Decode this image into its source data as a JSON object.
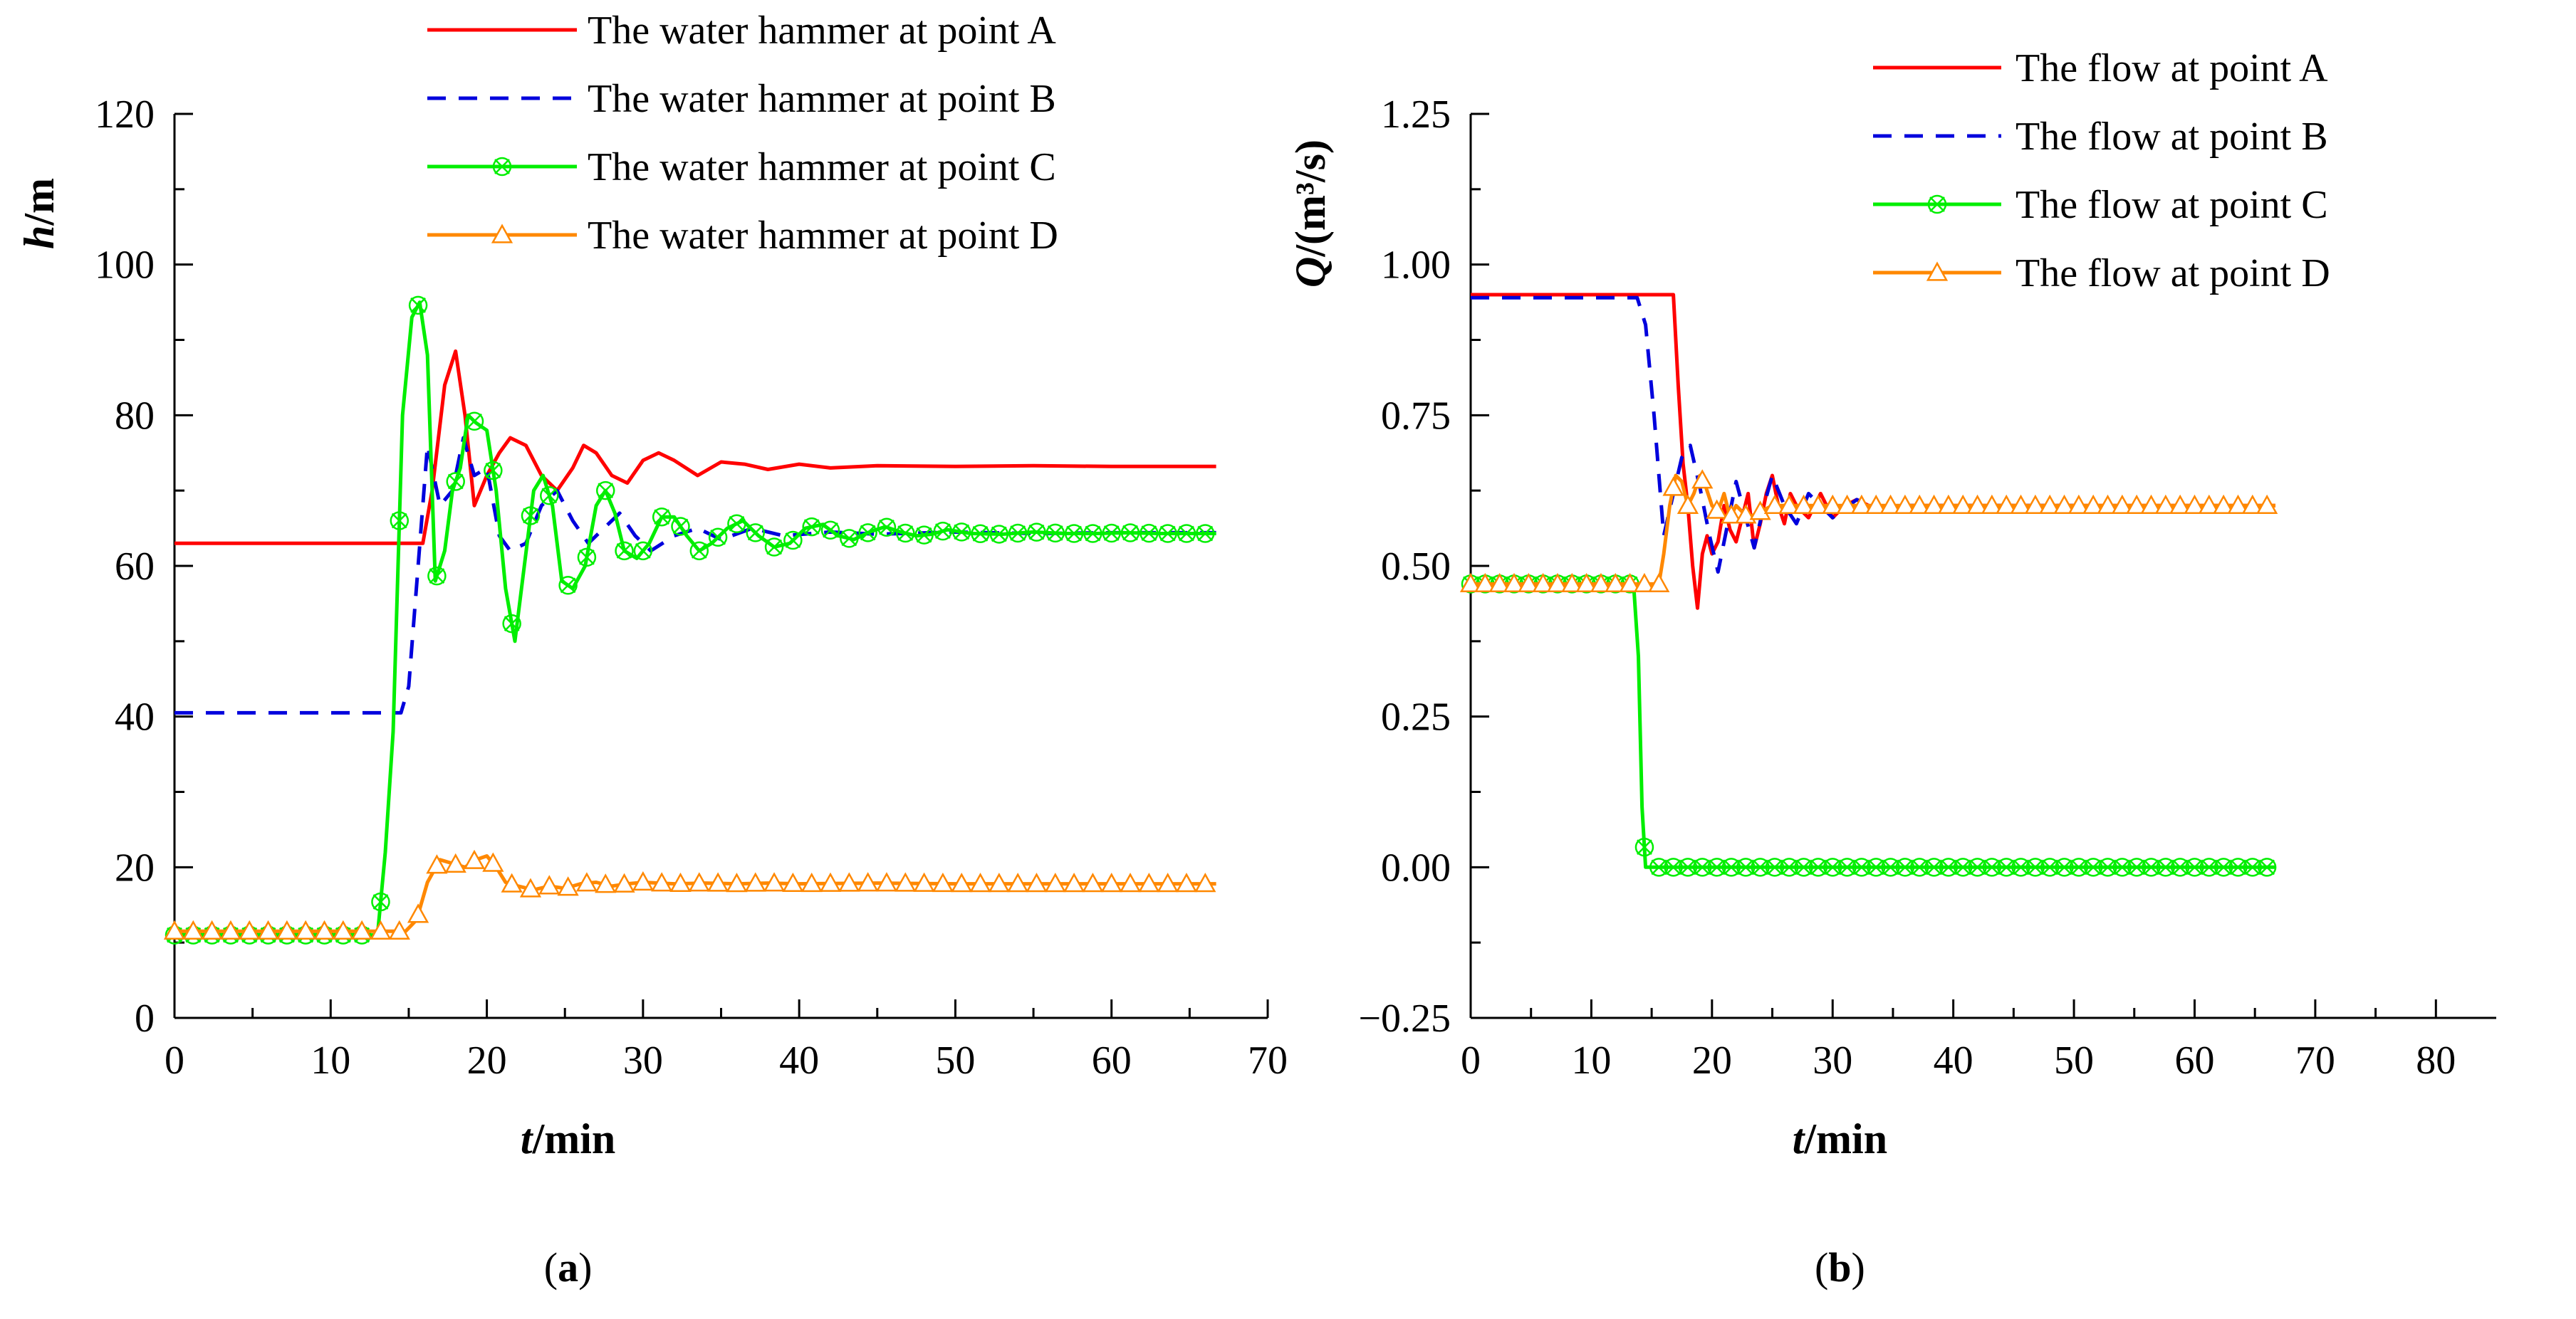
{
  "chart_data": [
    {
      "type": "line",
      "panel_label": "(a)",
      "panel_label_letter": "a",
      "xlabel": {
        "italic": "t",
        "rest": "/min"
      },
      "ylabel": {
        "italic": "h",
        "rest": "/m"
      },
      "xlim": [
        0,
        70
      ],
      "ylim": [
        0,
        120
      ],
      "xticks": [
        0,
        10,
        20,
        30,
        40,
        50,
        60,
        70
      ],
      "yticks": [
        0,
        20,
        40,
        60,
        80,
        100,
        120
      ],
      "xtick_labels": [
        "0",
        "10",
        "20",
        "30",
        "40",
        "50",
        "60",
        "70"
      ],
      "ytick_labels": [
        "0",
        "20",
        "40",
        "60",
        "80",
        "100",
        "120"
      ],
      "legend_position": "top-right",
      "series": [
        {
          "name": "The water hammer at point A",
          "color": "#ff0000",
          "style": "solid",
          "marker": "none",
          "x": [
            0,
            15.9,
            16.5,
            17.3,
            18.0,
            18.6,
            19.2,
            20.0,
            20.8,
            21.5,
            22.5,
            23.5,
            24.5,
            25.5,
            26.2,
            27.0,
            28.0,
            29.0,
            30.0,
            31.0,
            32.0,
            33.5,
            35.0,
            36.5,
            38.0,
            40.0,
            42.0,
            45.0,
            50.0,
            55.0,
            60.0,
            66.7
          ],
          "y": [
            63,
            63,
            70,
            84,
            88.5,
            80,
            68,
            72,
            75,
            77,
            76,
            72,
            70,
            73,
            76,
            75,
            72,
            71,
            74,
            75,
            74,
            72,
            73.8,
            73.5,
            72.8,
            73.5,
            73.0,
            73.3,
            73.2,
            73.3,
            73.2,
            73.2
          ]
        },
        {
          "name": "The water hammer at point B",
          "color": "#0000dd",
          "style": "dashed",
          "marker": "none",
          "x": [
            0,
            14.5,
            15.0,
            15.6,
            16.2,
            17.0,
            17.8,
            18.5,
            19.2,
            20.0,
            20.8,
            21.5,
            22.5,
            23.5,
            24.5,
            25.5,
            26.5,
            27.5,
            28.5,
            29.5,
            30.5,
            32.0,
            33.5,
            35.0,
            37.0,
            39.0,
            42.0,
            45.0,
            50.0,
            55.0,
            60.0,
            66.7
          ],
          "y": [
            40.5,
            40.5,
            44,
            60,
            76,
            68,
            70,
            77,
            72,
            73,
            64,
            62,
            63,
            68,
            70,
            66,
            63,
            65,
            67,
            64,
            62,
            64,
            65,
            63.5,
            65,
            64,
            64.5,
            64.2,
            64.5,
            64.3,
            64.4,
            64.4
          ]
        },
        {
          "name": "The water hammer at point C",
          "color": "#00ee00",
          "style": "solid",
          "marker": "x",
          "x": [
            0,
            13.0,
            13.5,
            14.0,
            14.6,
            15.2,
            15.7,
            16.2,
            16.7,
            17.3,
            17.8,
            18.3,
            18.8,
            19.3,
            20.0,
            20.6,
            21.2,
            21.8,
            22.4,
            23.0,
            23.6,
            24.2,
            24.8,
            25.5,
            26.3,
            27.0,
            27.6,
            28.2,
            28.8,
            29.6,
            30.4,
            31.2,
            32.0,
            32.8,
            33.6,
            34.4,
            35.4,
            36.4,
            37.4,
            38.4,
            39.4,
            40.4,
            41.5,
            42.5,
            43.5,
            44.5,
            45.5,
            46.5,
            47.5,
            48.5,
            49.5,
            51.0,
            53.0,
            55.0,
            57.0,
            59.0,
            61.0,
            63.0,
            65.0,
            66.7
          ],
          "y": [
            11,
            11,
            22,
            38,
            80,
            93,
            95,
            88,
            58,
            62,
            70,
            73,
            80,
            79,
            78,
            70,
            57,
            50,
            60,
            70,
            72,
            68,
            58,
            57,
            60,
            68,
            70,
            67,
            62,
            61,
            63,
            66.5,
            66.5,
            64,
            62,
            63,
            65,
            66,
            64,
            62.5,
            63,
            65,
            65.5,
            64,
            63.5,
            64.5,
            65.2,
            64.5,
            64,
            64.2,
            64.8,
            64.3,
            64.2,
            64.5,
            64.3,
            64.3,
            64.4,
            64.3,
            64.3,
            64.3
          ]
        },
        {
          "name": "The water hammer at point D",
          "color": "#ff8800",
          "style": "solid",
          "marker": "triangle",
          "x": [
            0,
            14.8,
            15.5,
            16.2,
            17.0,
            17.8,
            18.6,
            19.3,
            20.0,
            20.6,
            21.2,
            22.0,
            23.0,
            24.0,
            25.0,
            26.0,
            27.0,
            28.0,
            29.0,
            30.0,
            32.0,
            34.0,
            36.0,
            38.0,
            40.0,
            45.0,
            50.0,
            55.0,
            60.0,
            66.7
          ],
          "y": [
            11.5,
            11.5,
            13,
            18,
            21,
            20.5,
            20,
            21,
            21.5,
            20,
            18,
            17.5,
            17,
            17.5,
            17.2,
            17.8,
            18,
            17.5,
            17.8,
            18,
            17.8,
            17.9,
            17.8,
            17.9,
            17.8,
            17.9,
            17.8,
            17.8,
            17.8,
            17.8
          ]
        }
      ]
    },
    {
      "type": "line",
      "panel_label": "(b)",
      "panel_label_letter": "b",
      "xlabel": {
        "italic": "t",
        "rest": "/min"
      },
      "ylabel": {
        "italic": "Q",
        "rest": "/(m³/s)"
      },
      "xlim": [
        0,
        85
      ],
      "ylim": [
        -0.25,
        1.25
      ],
      "xticks": [
        0,
        10,
        20,
        30,
        40,
        50,
        60,
        70,
        80
      ],
      "yticks": [
        -0.25,
        0,
        0.25,
        0.5,
        0.75,
        1.0,
        1.25
      ],
      "xtick_labels": [
        "0",
        "10",
        "20",
        "30",
        "40",
        "50",
        "60",
        "70",
        "80"
      ],
      "ytick_labels": [
        "−0.25",
        "0.00",
        "0.25",
        "0.50",
        "0.75",
        "1.00",
        "1.25"
      ],
      "legend_position": "top-right",
      "series": [
        {
          "name": "The flow at point A",
          "color": "#ff0000",
          "style": "solid",
          "marker": "none",
          "x": [
            0,
            16.8,
            17.2,
            17.6,
            18.0,
            18.4,
            18.8,
            19.2,
            19.6,
            20.0,
            20.5,
            21.0,
            21.5,
            22.0,
            22.5,
            23.0,
            23.5,
            24.0,
            24.5,
            25.0,
            25.5,
            26.0,
            26.5,
            27.0,
            28.0,
            29.0,
            30.0,
            31.0,
            32.0,
            34.0,
            36.0,
            38.0,
            40.0,
            45.0,
            50.0,
            55.0,
            60.0,
            66.7
          ],
          "y": [
            0.95,
            0.95,
            0.8,
            0.67,
            0.6,
            0.5,
            0.43,
            0.52,
            0.55,
            0.52,
            0.54,
            0.6,
            0.56,
            0.54,
            0.58,
            0.62,
            0.53,
            0.57,
            0.62,
            0.65,
            0.6,
            0.57,
            0.62,
            0.6,
            0.58,
            0.62,
            0.58,
            0.6,
            0.61,
            0.59,
            0.6,
            0.6,
            0.6,
            0.6,
            0.6,
            0.6,
            0.6,
            0.6
          ]
        },
        {
          "name": "The flow at point B",
          "color": "#0000dd",
          "style": "dashed",
          "marker": "none",
          "x": [
            0,
            13.8,
            14.5,
            15.2,
            16.0,
            16.8,
            17.5,
            18.2,
            19.0,
            19.8,
            20.5,
            21.2,
            22.0,
            22.8,
            23.5,
            24.3,
            25.0,
            26.0,
            27.0,
            28.0,
            29.0,
            30.0,
            32.0,
            34.0,
            36.0,
            40.0,
            45.0,
            50.0
          ],
          "y": [
            0.945,
            0.945,
            0.9,
            0.75,
            0.55,
            0.62,
            0.68,
            0.7,
            0.63,
            0.55,
            0.49,
            0.56,
            0.64,
            0.58,
            0.53,
            0.6,
            0.65,
            0.6,
            0.57,
            0.62,
            0.6,
            0.58,
            0.61,
            0.59,
            0.6,
            0.6,
            0.6,
            0.6
          ]
        },
        {
          "name": "The flow at point C",
          "color": "#00ee00",
          "style": "solid",
          "marker": "x",
          "x": [
            0,
            13.5,
            13.9,
            14.2,
            14.5,
            66.7
          ],
          "y": [
            0.47,
            0.47,
            0.35,
            0.1,
            0.0,
            0.0
          ]
        },
        {
          "name": "The flow at point D",
          "color": "#ff8800",
          "style": "solid",
          "marker": "triangle",
          "x": [
            0,
            15.6,
            16.0,
            16.5,
            17.0,
            17.5,
            18.0,
            18.5,
            19.0,
            19.5,
            20.0,
            20.5,
            21.0,
            21.5,
            22.0,
            23.0,
            24.0,
            25.0,
            26.0,
            27.0,
            28.0,
            30.0,
            33.0,
            36.0,
            40.0,
            45.0,
            50.0,
            55.0,
            60.0,
            66.7
          ],
          "y": [
            0.47,
            0.47,
            0.52,
            0.6,
            0.65,
            0.64,
            0.6,
            0.62,
            0.65,
            0.63,
            0.6,
            0.59,
            0.62,
            0.58,
            0.6,
            0.58,
            0.59,
            0.6,
            0.6,
            0.6,
            0.6,
            0.6,
            0.6,
            0.6,
            0.6,
            0.6,
            0.6,
            0.6,
            0.6,
            0.6
          ]
        }
      ]
    }
  ]
}
